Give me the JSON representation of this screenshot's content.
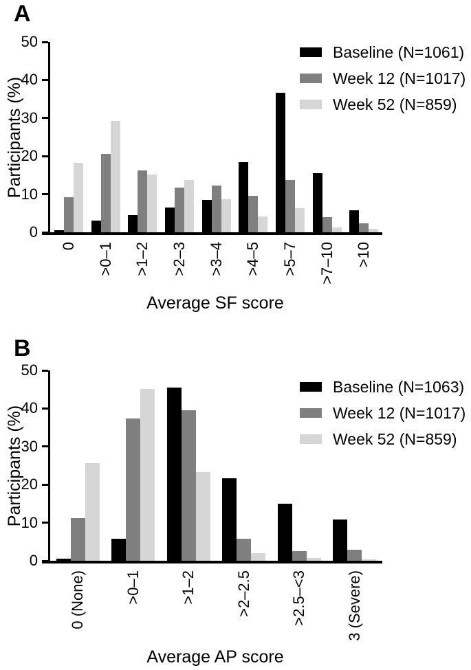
{
  "chart_data": [
    {
      "type": "bar",
      "panel_label": "A",
      "xlabel": "Average SF score",
      "ylabel": "Participants (%)",
      "ylim": [
        0,
        50
      ],
      "yticks": [
        0,
        10,
        20,
        30,
        40,
        50
      ],
      "grid": false,
      "legend_position": "top-right",
      "categories": [
        "0",
        ">0–1",
        ">1–2",
        ">2–3",
        ">3–4",
        ">4–5",
        ">5–7",
        ">7–10",
        ">10"
      ],
      "series": [
        {
          "name": "Baseline (N=1061)",
          "color": "#000000",
          "values": [
            0.5,
            3.0,
            4.6,
            6.5,
            8.4,
            18.5,
            36.7,
            15.6,
            5.7
          ]
        },
        {
          "name": "Week 12 (N=1017)",
          "color": "#7f7f7f",
          "values": [
            9.2,
            20.5,
            16.3,
            11.7,
            12.2,
            9.5,
            13.7,
            4.0,
            2.3
          ]
        },
        {
          "name": "Week 52 (N=859)",
          "color": "#d6d6d6",
          "values": [
            18.2,
            29.3,
            15.1,
            13.8,
            8.6,
            4.2,
            6.4,
            1.3,
            0.9
          ]
        }
      ]
    },
    {
      "type": "bar",
      "panel_label": "B",
      "xlabel": "Average AP score",
      "ylabel": "Participants (%)",
      "ylim": [
        0,
        50
      ],
      "yticks": [
        0,
        10,
        20,
        30,
        40,
        50
      ],
      "grid": false,
      "legend_position": "top-right",
      "categories": [
        "0 (None)",
        ">0–1",
        ">1–2",
        ">2–2.5",
        ">2.5–<3",
        "3 (Severe)"
      ],
      "series": [
        {
          "name": "Baseline (N=1063)",
          "color": "#000000",
          "values": [
            0.6,
            5.7,
            45.4,
            21.7,
            15.0,
            10.8
          ]
        },
        {
          "name": "Week 12 (N=1017)",
          "color": "#7f7f7f",
          "values": [
            11.2,
            37.4,
            39.6,
            5.7,
            2.5,
            2.9
          ]
        },
        {
          "name": "Week 52 (N=859)",
          "color": "#d6d6d6",
          "values": [
            25.7,
            45.1,
            23.2,
            2.0,
            0.8,
            0.3
          ]
        }
      ]
    }
  ]
}
